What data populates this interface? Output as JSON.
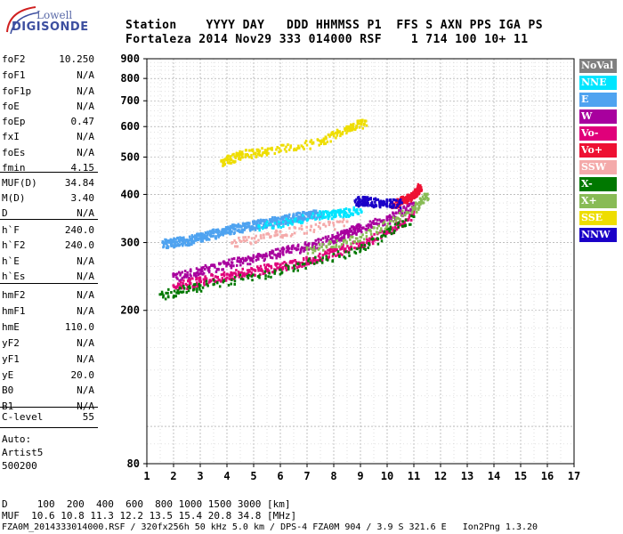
{
  "logo": {
    "top": "Lowell",
    "bottom": "DIGISONDE"
  },
  "header": {
    "line1": "Station    YYYY DAY   DDD HHMMSS P1  FFS S AXN PPS IGA PS",
    "line2": "Fortaleza 2014 Nov29 333 014000 RSF    1 714 100 10+ 11"
  },
  "params": [
    {
      "label": "foF2",
      "value": "10.250"
    },
    {
      "label": "foF1",
      "value": "N/A"
    },
    {
      "label": "foF1p",
      "value": "N/A"
    },
    {
      "label": "foE",
      "value": "N/A"
    },
    {
      "label": "foEp",
      "value": "0.47"
    },
    {
      "label": "fxI",
      "value": "N/A"
    },
    {
      "label": "foEs",
      "value": "N/A"
    },
    {
      "label": "fmin",
      "value": "4.15"
    },
    {
      "label": "MUF(D)",
      "value": "34.84"
    },
    {
      "label": "M(D)",
      "value": "3.40"
    },
    {
      "label": "D",
      "value": "N/A"
    },
    {
      "label": "h`F",
      "value": "240.0"
    },
    {
      "label": "h`F2",
      "value": "240.0"
    },
    {
      "label": "h`E",
      "value": "N/A"
    },
    {
      "label": "h`Es",
      "value": "N/A"
    },
    {
      "label": "hmF2",
      "value": "N/A"
    },
    {
      "label": "hmF1",
      "value": "N/A"
    },
    {
      "label": "hmE",
      "value": "110.0"
    },
    {
      "label": "yF2",
      "value": "N/A"
    },
    {
      "label": "yF1",
      "value": "N/A"
    },
    {
      "label": "yE",
      "value": "20.0"
    },
    {
      "label": "B0",
      "value": "N/A"
    },
    {
      "label": "B1",
      "value": "N/A"
    },
    {
      "label": "C-level",
      "value": "55"
    }
  ],
  "notes": {
    "auto": "Auto:",
    "artist": "Artist5",
    "version": "500200"
  },
  "footer": {
    "d_line": "D     100  200  400  600  800 1000 1500 3000 [km]",
    "muf_line": "MUF  10.6 10.8 11.3 12.2 13.5 15.4 20.8 34.8 [MHz]",
    "file_line": "FZA0M_2014333014000.RSF / 320fx256h 50 kHz 5.0 km / DPS-4 FZA0M 904 / 3.9 S 321.6 E   Ion2Png 1.3.20"
  },
  "legend": [
    {
      "label": "NoVal",
      "color": "#808080"
    },
    {
      "label": "NNE",
      "color": "#00e5ff"
    },
    {
      "label": "E",
      "color": "#4fa3f0"
    },
    {
      "label": "W",
      "color": "#a8009e"
    },
    {
      "label": "Vo-",
      "color": "#e0007a"
    },
    {
      "label": "Vo+",
      "color": "#ee1133"
    },
    {
      "label": "SSW",
      "color": "#f4aaaa"
    },
    {
      "label": "X-",
      "color": "#007800"
    },
    {
      "label": "X+",
      "color": "#88bb55"
    },
    {
      "label": "SSE",
      "color": "#eedd00"
    },
    {
      "label": "NNW",
      "color": "#1a00c8"
    }
  ],
  "chart_data": {
    "type": "scatter",
    "title": "",
    "xlabel": "",
    "ylabel": "",
    "xlim": [
      1,
      17
    ],
    "ylim": [
      80,
      900
    ],
    "x_ticks": [
      1,
      2,
      3,
      4,
      5,
      6,
      7,
      8,
      9,
      10,
      11,
      12,
      13,
      14,
      15,
      16,
      17
    ],
    "y_ticks": [
      80,
      200,
      300,
      400,
      500,
      600,
      700,
      800,
      900
    ],
    "y_scale": "log",
    "grid": true,
    "legend_position": "right",
    "series": [
      {
        "name": "E",
        "points": [
          [
            1.6,
            300
          ],
          [
            2.0,
            302
          ],
          [
            2.5,
            305
          ],
          [
            3.0,
            312
          ],
          [
            3.5,
            318
          ],
          [
            4.0,
            325
          ],
          [
            4.5,
            330
          ],
          [
            5.0,
            335
          ],
          [
            5.5,
            340
          ],
          [
            6.0,
            345
          ],
          [
            6.5,
            350
          ],
          [
            7.0,
            355
          ],
          [
            7.5,
            358
          ]
        ]
      },
      {
        "name": "W",
        "points": [
          [
            2.0,
            245
          ],
          [
            3.0,
            255
          ],
          [
            4.0,
            265
          ],
          [
            5.0,
            275
          ],
          [
            6.0,
            285
          ],
          [
            7.0,
            295
          ],
          [
            8.0,
            310
          ],
          [
            8.5,
            320
          ],
          [
            9.0,
            330
          ],
          [
            10.0,
            345
          ],
          [
            11.0,
            380
          ]
        ]
      },
      {
        "name": "Vo-",
        "points": [
          [
            2.0,
            232
          ],
          [
            3.0,
            240
          ],
          [
            4.0,
            248
          ],
          [
            5.0,
            255
          ],
          [
            6.0,
            262
          ],
          [
            7.0,
            270
          ],
          [
            8.0,
            285
          ],
          [
            9.0,
            300
          ],
          [
            10.0,
            320
          ],
          [
            11.0,
            360
          ]
        ]
      },
      {
        "name": "Vo+",
        "points": [
          [
            10.2,
            380
          ],
          [
            10.6,
            390
          ],
          [
            11.0,
            400
          ],
          [
            11.2,
            420
          ]
        ]
      },
      {
        "name": "NNE",
        "points": [
          [
            5.2,
            330
          ],
          [
            7.5,
            355
          ],
          [
            8.2,
            360
          ],
          [
            9.0,
            365
          ]
        ]
      },
      {
        "name": "NNW",
        "points": [
          [
            8.8,
            385
          ],
          [
            9.2,
            388
          ],
          [
            9.8,
            380
          ],
          [
            10.5,
            382
          ]
        ]
      },
      {
        "name": "X-",
        "points": [
          [
            1.5,
            220
          ],
          [
            3.0,
            232
          ],
          [
            6.0,
            255
          ],
          [
            9.0,
            290
          ],
          [
            11.0,
            350
          ]
        ]
      },
      {
        "name": "X+",
        "points": [
          [
            7.0,
            290
          ],
          [
            9.0,
            310
          ],
          [
            11.0,
            370
          ],
          [
            11.5,
            400
          ]
        ]
      },
      {
        "name": "SSE",
        "points": [
          [
            3.8,
            490
          ],
          [
            4.5,
            510
          ],
          [
            5.5,
            520
          ],
          [
            7.5,
            550
          ],
          [
            8.5,
            600
          ],
          [
            9.2,
            620
          ]
        ]
      },
      {
        "name": "SSW",
        "points": [
          [
            4.2,
            300
          ],
          [
            6.0,
            320
          ],
          [
            8.5,
            340
          ]
        ]
      }
    ]
  }
}
